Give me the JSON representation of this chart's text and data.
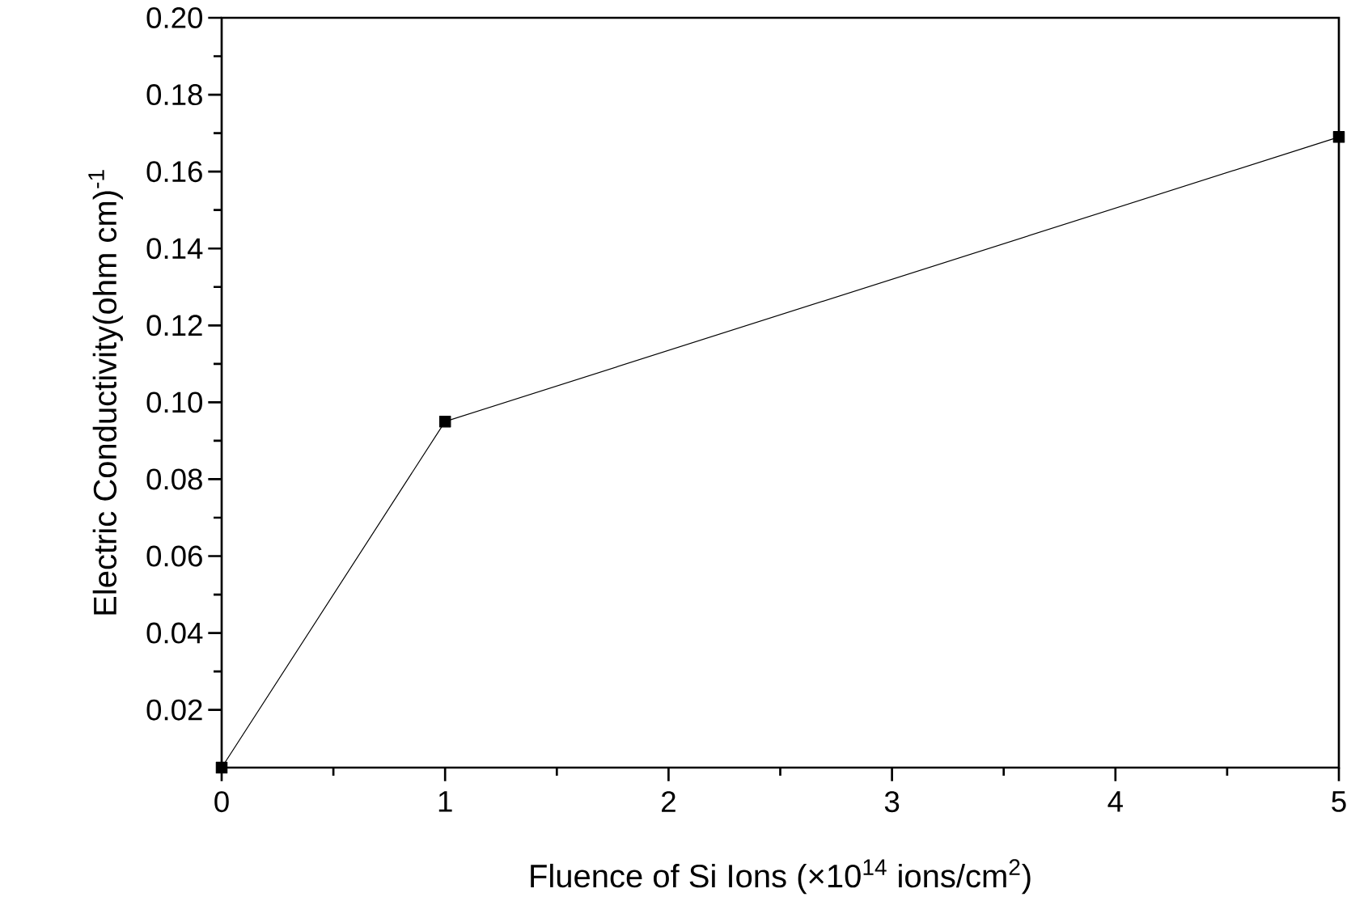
{
  "chart_data": {
    "type": "line",
    "xlabel": "Fluence of Si Ions (×10$^{14}$ ions/cm$^{2}$)",
    "ylabel": "Electric Conductivity(ohm cm)$^{-1}$",
    "x": [
      0,
      1,
      5
    ],
    "series": [
      {
        "color": "#000000",
        "values": [
          0.005,
          0.095,
          0.169
        ]
      }
    ],
    "xlim": [
      0,
      5
    ],
    "ylim": [
      0.005,
      0.2
    ],
    "xticks": [
      0,
      1,
      2,
      3,
      4,
      5
    ],
    "yticks": [
      {
        "value": 0.02,
        "label": "0.02"
      },
      {
        "value": 0.04,
        "label": "0.04"
      },
      {
        "value": 0.06,
        "label": "0.06"
      },
      {
        "value": 0.08,
        "label": "0.08"
      },
      {
        "value": 0.1,
        "label": "0.10"
      },
      {
        "value": 0.12,
        "label": "0.12"
      },
      {
        "value": 0.14,
        "label": "0.14"
      },
      {
        "value": 0.16,
        "label": "0.16"
      },
      {
        "value": 0.18,
        "label": "0.18"
      },
      {
        "value": 0.2,
        "label": "0.20"
      }
    ],
    "marker": "square",
    "line_style": "solid"
  }
}
